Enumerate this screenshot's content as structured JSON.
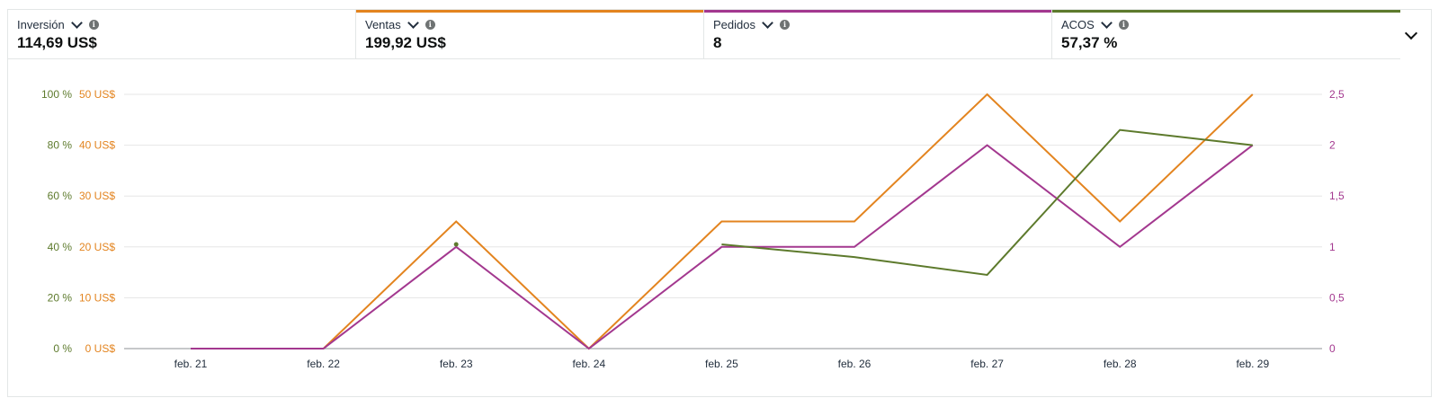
{
  "metrics": [
    {
      "label": "Inversión",
      "value": "114,69 US$",
      "color": ""
    },
    {
      "label": "Ventas",
      "value": "199,92 US$",
      "color": "#e3841f"
    },
    {
      "label": "Pedidos",
      "value": "8",
      "color": "#a3388f"
    },
    {
      "label": "ACOS",
      "value": "57,37 %",
      "color": "#5d7a2c"
    }
  ],
  "colors": {
    "ventas": "#e3841f",
    "pedidos": "#a3388f",
    "acos": "#5d7a2c",
    "grid": "#e6e6e6",
    "axis": "#8d9096"
  },
  "chart_data": {
    "type": "line",
    "categories": [
      "feb. 21",
      "feb. 22",
      "feb. 23",
      "feb. 24",
      "feb. 25",
      "feb. 26",
      "feb. 27",
      "feb. 28",
      "feb. 29"
    ],
    "axes": {
      "left_percent": {
        "ticks": [
          "100 %",
          "80 %",
          "60 %",
          "40 %",
          "20 %",
          "0 %"
        ],
        "range": [
          0,
          100
        ]
      },
      "left_currency": {
        "ticks": [
          "50 US$",
          "40 US$",
          "30 US$",
          "20 US$",
          "10 US$",
          "0 US$"
        ],
        "range": [
          0,
          50
        ]
      },
      "right_count": {
        "ticks": [
          "2,5",
          "2",
          "1,5",
          "1",
          "0,5",
          "0"
        ],
        "range": [
          0,
          2.5
        ]
      }
    },
    "grid": true,
    "series": [
      {
        "name": "Ventas",
        "axis": "left_currency",
        "color": "#e3841f",
        "values": [
          0,
          0,
          25,
          0,
          25,
          25,
          50,
          25,
          50
        ]
      },
      {
        "name": "Pedidos",
        "axis": "right_count",
        "color": "#a3388f",
        "values": [
          0,
          0,
          1,
          0,
          1,
          1,
          2,
          1,
          2
        ]
      },
      {
        "name": "ACOS",
        "axis": "left_percent",
        "color": "#5d7a2c",
        "values": [
          null,
          null,
          41,
          null,
          41,
          36,
          29,
          86,
          80
        ]
      }
    ]
  }
}
